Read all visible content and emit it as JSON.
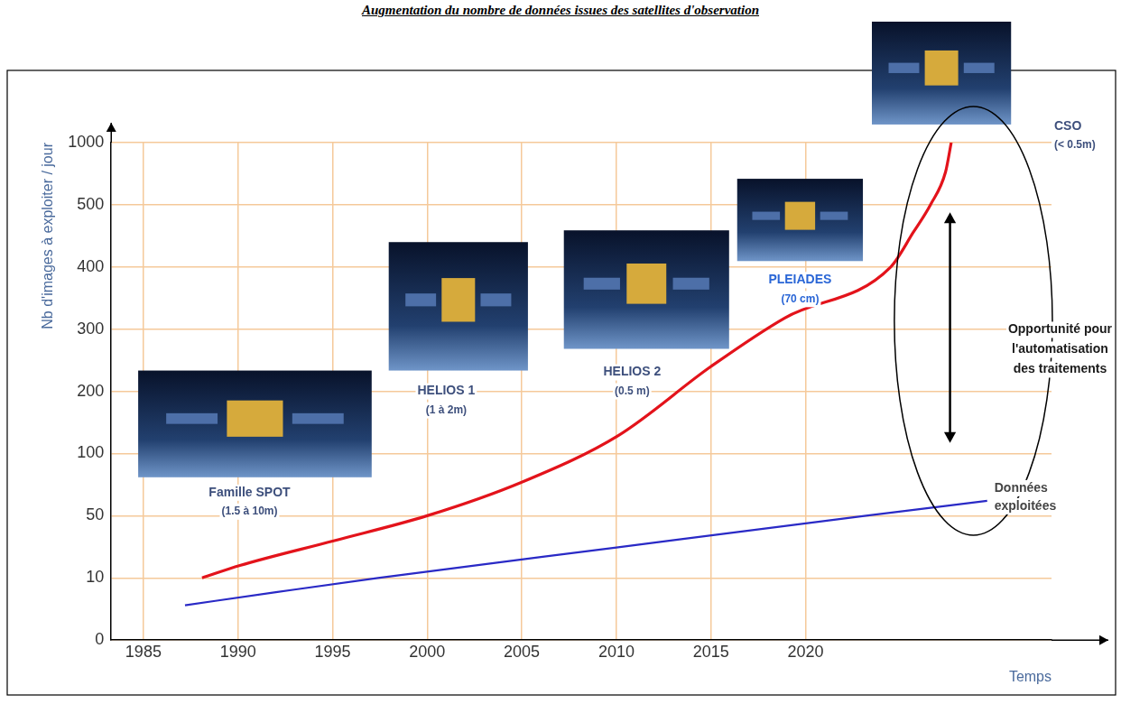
{
  "chart_data": {
    "type": "line",
    "title": "Augmentation du nombre de données issues des satellites d'observation",
    "y_label": "Nb d'images à exploiter / jour",
    "x_label": "Temps",
    "xlim": [
      1983.3,
      2033
    ],
    "xticks": [
      1985,
      1990,
      1995,
      2000,
      2005,
      2010,
      2015,
      2020
    ],
    "ylim": [
      0,
      1000
    ],
    "yticks": [
      0,
      10,
      50,
      100,
      200,
      300,
      400,
      500,
      1000
    ],
    "grid": true,
    "series": [
      {
        "color": "#e3131b",
        "line_style": "solid",
        "x": [
          1988.1,
          1990.1,
          1995.1,
          2000,
          2005,
          2010.1,
          2015,
          2018.9,
          2024.5,
          2025.7,
          2026.6,
          2027.4,
          2027.7
        ],
        "values": [
          10,
          18,
          34,
          50,
          77,
          129,
          240,
          318,
          400,
          456,
          500,
          764,
          1000
        ]
      },
      {
        "name": "Données exploitées",
        "color": "#2a2ac6",
        "line_style": "solid",
        "x": [
          1987.2,
          1992,
          1997.4,
          2010,
          2023.2,
          2029.6
        ],
        "values": [
          5.6,
          7.7,
          10,
          29.6,
          50,
          62
        ]
      }
    ],
    "satellites": [
      {
        "name": "Famille SPOT",
        "resolution": "(1.5 à 10m)"
      },
      {
        "name": "HELIOS 1",
        "resolution": "(1 à 2m)"
      },
      {
        "name": "HELIOS 2",
        "resolution": "(0.5 m)"
      },
      {
        "name": "PLEIADES",
        "resolution": "(70 cm)"
      },
      {
        "name": "CSO",
        "resolution": "(< 0.5m)"
      }
    ],
    "annotations": [
      "Opportunité pour l'automatisation des traitements"
    ]
  }
}
